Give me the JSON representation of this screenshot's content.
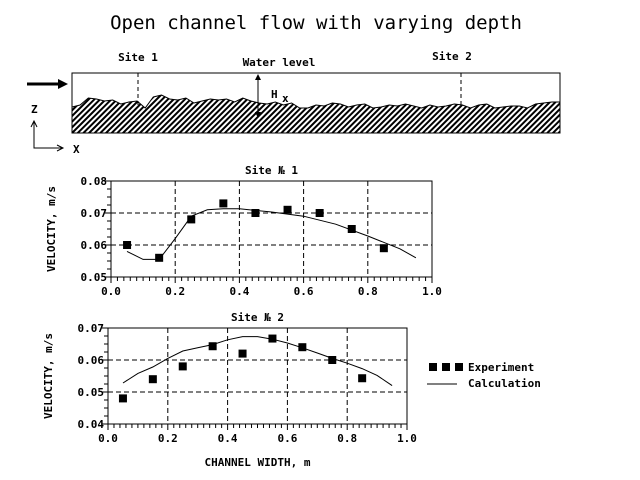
{
  "title": "Open channel flow with varying depth",
  "diagram": {
    "site1_label": "Site 1",
    "site2_label": "Site 2",
    "water_level_label": "Water level",
    "depth_label": "H",
    "depth_subscript": "x",
    "z_axis_label": "Z",
    "x_axis_label": "X"
  },
  "legend": {
    "experiment": "Experiment",
    "calculation": "Calculation"
  },
  "chart_data": [
    {
      "type": "scatter",
      "title": "Site № 1",
      "ylabel": "VELOCITY, m/s",
      "xlabel": "",
      "xlim": [
        0.0,
        1.0
      ],
      "ylim": [
        0.05,
        0.08
      ],
      "xticks": [
        "0.0",
        "0.2",
        "0.4",
        "0.6",
        "0.8",
        "1.0"
      ],
      "yticks": [
        "0.05",
        "0.06",
        "0.07",
        "0.08"
      ],
      "grid": true,
      "series": [
        {
          "name": "Experiment",
          "kind": "points",
          "x": [
            0.05,
            0.15,
            0.25,
            0.35,
            0.45,
            0.55,
            0.65,
            0.75,
            0.85
          ],
          "y": [
            0.06,
            0.056,
            0.068,
            0.073,
            0.07,
            0.071,
            0.07,
            0.065,
            0.059
          ]
        },
        {
          "name": "Calculation",
          "kind": "line",
          "x": [
            0.05,
            0.1,
            0.15,
            0.2,
            0.25,
            0.3,
            0.35,
            0.4,
            0.5,
            0.6,
            0.7,
            0.8,
            0.9,
            0.95
          ],
          "y": [
            0.058,
            0.0555,
            0.0555,
            0.062,
            0.069,
            0.071,
            0.0713,
            0.0713,
            0.0703,
            0.069,
            0.0665,
            0.0628,
            0.0588,
            0.056
          ]
        }
      ]
    },
    {
      "type": "scatter",
      "title": "Site № 2",
      "ylabel": "VELOCITY, m/s",
      "xlabel": "CHANNEL WIDTH, m",
      "xlim": [
        0.0,
        1.0
      ],
      "ylim": [
        0.04,
        0.07
      ],
      "xticks": [
        "0.0",
        "0.2",
        "0.4",
        "0.6",
        "0.8",
        "1.0"
      ],
      "yticks": [
        "0.04",
        "0.05",
        "0.06",
        "0.07"
      ],
      "grid": true,
      "legend_position": "right",
      "series": [
        {
          "name": "Experiment",
          "kind": "points",
          "x": [
            0.05,
            0.15,
            0.25,
            0.35,
            0.45,
            0.55,
            0.65,
            0.75,
            0.85
          ],
          "y": [
            0.048,
            0.054,
            0.058,
            0.0643,
            0.062,
            0.0667,
            0.064,
            0.06,
            0.0543
          ]
        },
        {
          "name": "Calculation",
          "kind": "line",
          "x": [
            0.05,
            0.1,
            0.15,
            0.2,
            0.25,
            0.3,
            0.35,
            0.4,
            0.45,
            0.5,
            0.55,
            0.6,
            0.65,
            0.7,
            0.75,
            0.8,
            0.85,
            0.9,
            0.95
          ],
          "y": [
            0.0528,
            0.0558,
            0.0578,
            0.0605,
            0.0628,
            0.0638,
            0.0648,
            0.0663,
            0.0673,
            0.0673,
            0.0665,
            0.0653,
            0.0638,
            0.0622,
            0.0605,
            0.059,
            0.0573,
            0.0552,
            0.052
          ]
        }
      ]
    }
  ]
}
